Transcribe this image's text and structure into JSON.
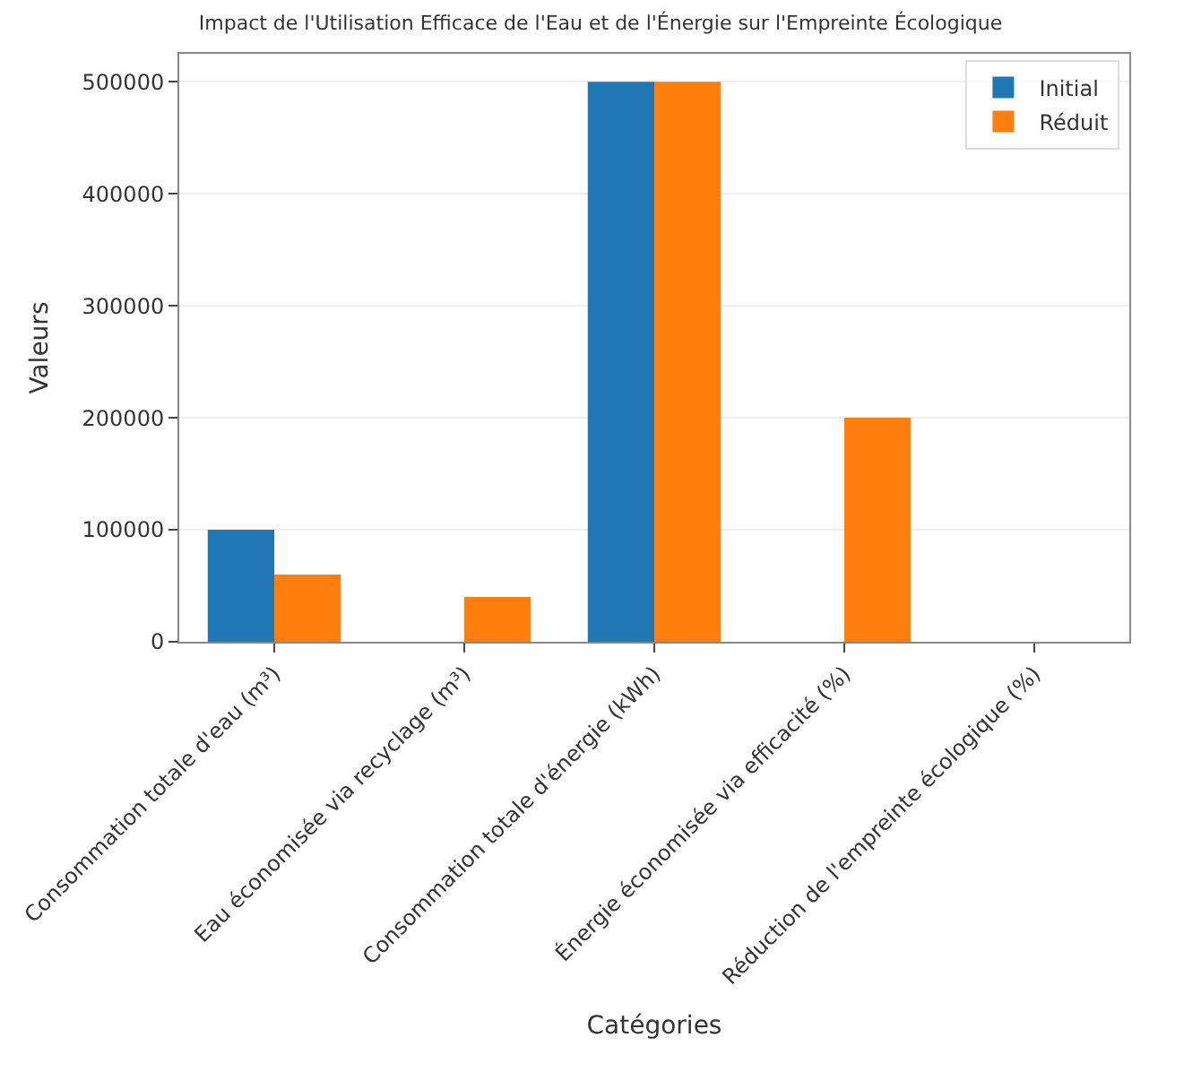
{
  "chart_data": {
    "type": "bar",
    "title": "Impact de l'Utilisation Efficace de l'Eau et de l'Énergie sur l'Empreinte Écologique",
    "xlabel": "Catégories",
    "ylabel": "Valeurs",
    "categories": [
      "Consommation totale d'eau (m³)",
      "Eau économisée via recyclage (m³)",
      "Consommation totale d'énergie (kWh)",
      "Énergie économisée via efficacité (%)",
      "Réduction de l'empreinte écologique (%)"
    ],
    "series": [
      {
        "name": "Initial",
        "color": "#1f77b4",
        "values": [
          100000,
          0,
          500000,
          0,
          0
        ]
      },
      {
        "name": "Réduit",
        "color": "#ff7f0e",
        "values": [
          60000,
          40000,
          500000,
          200000,
          0
        ]
      }
    ],
    "ylim": [
      0,
      525000
    ],
    "yticks": [
      0,
      100000,
      200000,
      300000,
      400000,
      500000
    ],
    "grid": "y",
    "legend": "top right"
  }
}
